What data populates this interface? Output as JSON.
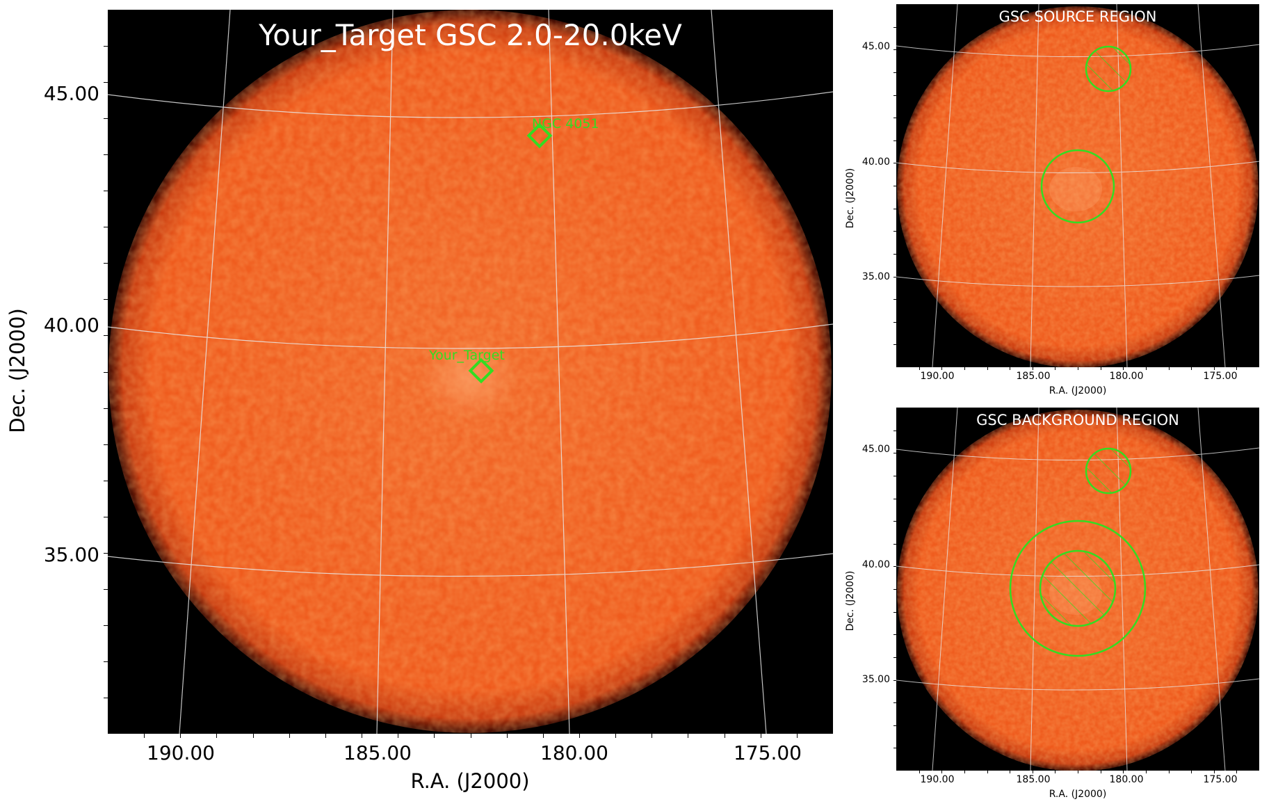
{
  "main": {
    "title": "Your_Target GSC 2.0-20.0keV",
    "xlabel": "R.A. (J2000)",
    "ylabel": "Dec. (J2000)",
    "xticks": [
      "190.00",
      "185.00",
      "180.00",
      "175.00"
    ],
    "yticks": [
      "45.00",
      "40.00",
      "35.00"
    ],
    "sources": [
      {
        "label": "NGC 4051"
      },
      {
        "label": "Your_Target"
      }
    ]
  },
  "source_panel": {
    "title": "GSC SOURCE REGION",
    "xlabel": "R.A. (J2000)",
    "ylabel": "Dec. (J2000)",
    "xticks": [
      "190.00",
      "185.00",
      "180.00",
      "175.00"
    ],
    "yticks": [
      "45.00",
      "40.00",
      "35.00"
    ]
  },
  "background_panel": {
    "title": "GSC BACKGROUND REGION",
    "xlabel": "R.A. (J2000)",
    "ylabel": "Dec. (J2000)",
    "xticks": [
      "190.00",
      "185.00",
      "180.00",
      "175.00"
    ],
    "yticks": [
      "45.00",
      "40.00",
      "35.00"
    ]
  },
  "colors": {
    "disk": "#f05a1e",
    "disk_edge": "#7a1a05",
    "region": "#33dd22",
    "grid": "#e8e8e8",
    "background": "#000000"
  }
}
